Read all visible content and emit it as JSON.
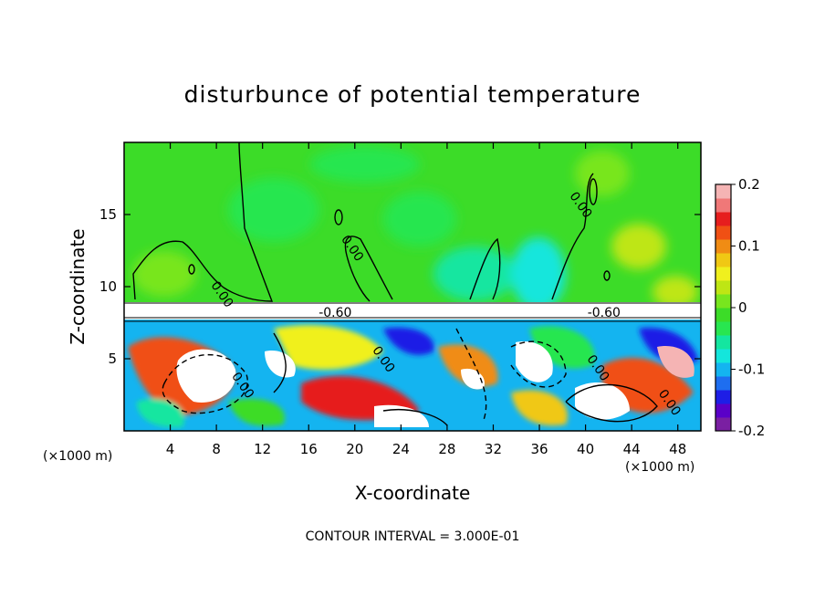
{
  "chart_data": {
    "type": "heatmap",
    "title": "disturbunce of potential temperature",
    "xlabel": "X-coordinate",
    "ylabel": "Z-coordinate",
    "x_unit": "(×1000 m)",
    "z_unit": "(×1000 m)",
    "xlim": [
      0,
      50
    ],
    "zlim": [
      0,
      20
    ],
    "x_ticks": [
      "4",
      "8",
      "12",
      "16",
      "20",
      "24",
      "28",
      "32",
      "36",
      "40",
      "44",
      "48"
    ],
    "z_ticks": [
      "5",
      "10",
      "15"
    ],
    "x_tick_values": [
      4,
      8,
      12,
      16,
      20,
      24,
      28,
      32,
      36,
      40,
      44,
      48
    ],
    "z_tick_values": [
      5,
      10,
      15
    ],
    "colorbar": {
      "range": [
        -0.2,
        0.2
      ],
      "tick_labels": [
        "0.2",
        "0.1",
        "0",
        "-0.1",
        "-0.2"
      ],
      "tick_values": [
        0.2,
        0.1,
        0,
        -0.1,
        -0.2
      ],
      "colors": [
        "#7a1fa2",
        "#5a00c8",
        "#1e1ee6",
        "#1e6ef0",
        "#14b4f0",
        "#14e6dc",
        "#14e6a0",
        "#28e650",
        "#3cdc28",
        "#78e61e",
        "#bee614",
        "#f0f01e",
        "#f0c814",
        "#f08c14",
        "#f05014",
        "#e61e1e",
        "#f07878",
        "#f5b4b4"
      ]
    },
    "contour_labels": [
      {
        "text": "0.00",
        "x": 19.5,
        "z": 12.5
      },
      {
        "text": "0.00",
        "x": 39.3,
        "z": 15.5
      },
      {
        "text": "0.00",
        "x": 8.2,
        "z": 9.3
      },
      {
        "text": "-0.60",
        "x": 18.3,
        "z": 7.9
      },
      {
        "text": "-0.60",
        "x": 41.6,
        "z": 7.9
      },
      {
        "text": "0.00",
        "x": 22.2,
        "z": 4.8
      },
      {
        "text": "0.00",
        "x": 10.0,
        "z": 3.0
      },
      {
        "text": "0.00",
        "x": 40.8,
        "z": 4.2
      },
      {
        "text": "0.00",
        "x": 47.0,
        "z": 1.8
      }
    ],
    "contour_interval_text": "CONTOUR INTERVAL = 3.000E-01",
    "legend": "colorbar-right"
  }
}
